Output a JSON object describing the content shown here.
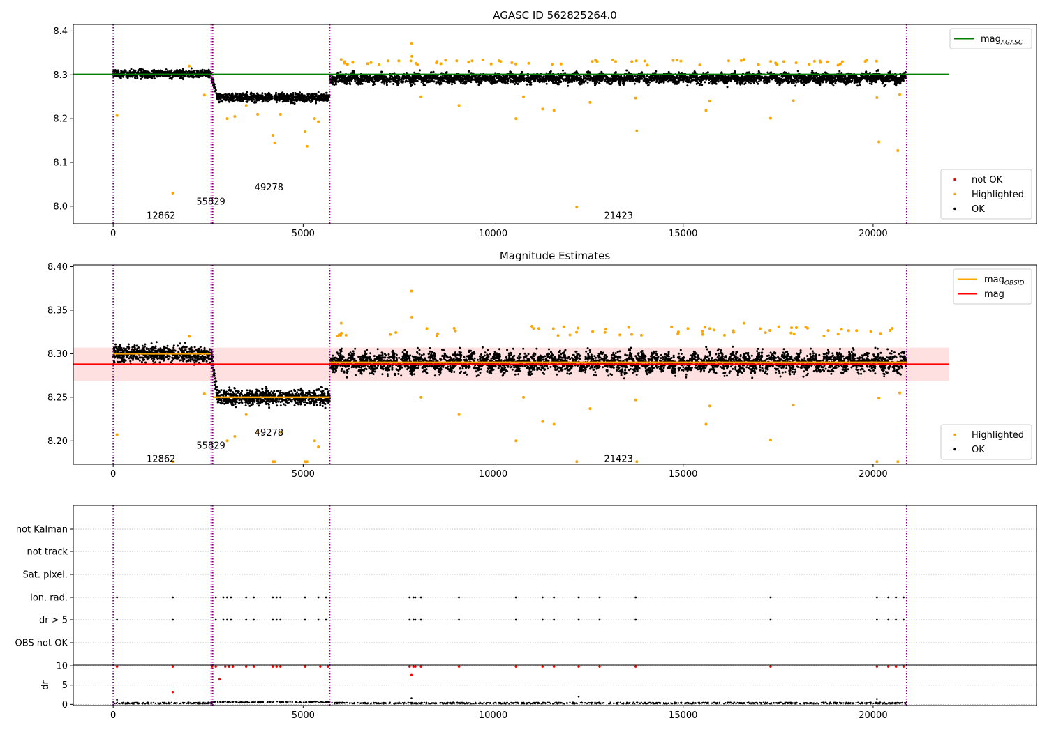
{
  "chart_data": [
    {
      "type": "scatter",
      "title": "AGASC ID 562825264.0",
      "xlim": [
        -1050,
        24300
      ],
      "ylim": [
        7.96,
        8.415
      ],
      "xticks": [
        0,
        5000,
        10000,
        15000,
        20000
      ],
      "xtick_labels": [
        "0",
        "5000",
        "10000",
        "15000",
        "20000"
      ],
      "yticks": [
        8.0,
        8.1,
        8.2,
        8.3,
        8.4
      ],
      "ytick_labels": [
        "8.0",
        "8.1",
        "8.2",
        "8.3",
        "8.4"
      ],
      "vlines": [
        0,
        2580,
        2620,
        5700,
        20880
      ],
      "obsid_segments": [
        {
          "label": "12862",
          "x": [
            0,
            2580
          ],
          "mag": 8.302,
          "spread": 0.01,
          "label_pos": [
            1260,
            7.98
          ]
        },
        {
          "label": "55829",
          "x": [
            2620,
            5700
          ],
          "mag": 8.248,
          "spread": 0.01,
          "label_pos": [
            2570,
            8.012
          ]
        },
        {
          "label": "49278",
          "x": [
            2620,
            5700
          ],
          "mag": 8.248,
          "spread": 0.01,
          "label_pos": [
            4100,
            8.044
          ]
        },
        {
          "label": "21423",
          "x": [
            5700,
            20880
          ],
          "mag": 8.292,
          "spread": 0.012,
          "label_pos": [
            13300,
            7.98
          ]
        }
      ],
      "highlighted_points": [
        [
          100,
          8.207
        ],
        [
          1570,
          8.03
        ],
        [
          2000,
          8.32
        ],
        [
          2400,
          8.254
        ],
        [
          3000,
          8.2
        ],
        [
          3200,
          8.205
        ],
        [
          3500,
          8.23
        ],
        [
          3800,
          8.21
        ],
        [
          4200,
          8.162
        ],
        [
          4250,
          8.145
        ],
        [
          4400,
          8.21
        ],
        [
          5050,
          8.17
        ],
        [
          5100,
          8.137
        ],
        [
          5300,
          8.2
        ],
        [
          5400,
          8.193
        ],
        [
          6000,
          8.335
        ],
        [
          7850,
          8.372
        ],
        [
          7860,
          8.342
        ],
        [
          8100,
          8.25
        ],
        [
          9100,
          8.23
        ],
        [
          10600,
          8.2
        ],
        [
          10800,
          8.25
        ],
        [
          11300,
          8.222
        ],
        [
          11600,
          8.219
        ],
        [
          12200,
          7.998
        ],
        [
          12550,
          8.237
        ],
        [
          13750,
          8.247
        ],
        [
          13780,
          8.172
        ],
        [
          15600,
          8.219
        ],
        [
          15700,
          8.24
        ],
        [
          16600,
          8.335
        ],
        [
          17300,
          8.201
        ],
        [
          17900,
          8.241
        ],
        [
          20100,
          8.248
        ],
        [
          20150,
          8.147
        ],
        [
          20650,
          8.127
        ],
        [
          20700,
          8.255
        ]
      ],
      "agasc_mag": 8.301,
      "agasc_xrange": [
        -1050,
        22000
      ],
      "legends": [
        {
          "position": "top-right",
          "entries": [
            {
              "label": "mag",
              "sub": "AGASC",
              "style": "line",
              "color": "#008000"
            }
          ]
        },
        {
          "position": "bottom-right",
          "entries": [
            {
              "label": "not OK",
              "style": "point",
              "color": "#ff0000"
            },
            {
              "label": "Highlighted",
              "style": "point",
              "color": "#ffa500"
            },
            {
              "label": "OK",
              "style": "point",
              "color": "#000000"
            }
          ]
        }
      ]
    },
    {
      "type": "scatter",
      "title": "Magnitude Estimates",
      "xlim": [
        -1050,
        24300
      ],
      "ylim": [
        8.173,
        8.402
      ],
      "xticks": [
        0,
        5000,
        10000,
        15000,
        20000
      ],
      "xtick_labels": [
        "0",
        "5000",
        "10000",
        "15000",
        "20000"
      ],
      "yticks": [
        8.2,
        8.25,
        8.3,
        8.35,
        8.4
      ],
      "ytick_labels": [
        "8.20",
        "8.25",
        "8.30",
        "8.35",
        "8.40"
      ],
      "vlines": [
        0,
        2580,
        2620,
        5700,
        20880
      ],
      "obsid_segments": [
        {
          "label": "12862",
          "x": [
            0,
            2580
          ],
          "mag": 8.3,
          "spread": 0.01,
          "label_pos": [
            1260,
            8.18
          ]
        },
        {
          "label": "55829",
          "x": [
            2620,
            5700
          ],
          "mag": 8.25,
          "spread": 0.01,
          "label_pos": [
            2570,
            8.195
          ]
        },
        {
          "label": "49278",
          "x": [
            2620,
            5700
          ],
          "mag": 8.25,
          "spread": 0.01,
          "label_pos": [
            4100,
            8.21
          ]
        },
        {
          "label": "21423",
          "x": [
            5700,
            20880
          ],
          "mag": 8.29,
          "spread": 0.012,
          "label_pos": [
            13300,
            8.18
          ]
        }
      ],
      "highlighted_points": [
        [
          100,
          8.207
        ],
        [
          1570,
          8.176
        ],
        [
          2000,
          8.32
        ],
        [
          2400,
          8.254
        ],
        [
          3000,
          8.2
        ],
        [
          3200,
          8.205
        ],
        [
          3500,
          8.23
        ],
        [
          3800,
          8.21
        ],
        [
          4200,
          8.176
        ],
        [
          4250,
          8.176
        ],
        [
          4400,
          8.21
        ],
        [
          5050,
          8.176
        ],
        [
          5100,
          8.176
        ],
        [
          5300,
          8.2
        ],
        [
          5400,
          8.193
        ],
        [
          6000,
          8.335
        ],
        [
          7850,
          8.372
        ],
        [
          7860,
          8.342
        ],
        [
          8100,
          8.25
        ],
        [
          9100,
          8.23
        ],
        [
          10600,
          8.2
        ],
        [
          10800,
          8.25
        ],
        [
          11300,
          8.222
        ],
        [
          11600,
          8.219
        ],
        [
          12200,
          8.176
        ],
        [
          12550,
          8.237
        ],
        [
          13750,
          8.247
        ],
        [
          13780,
          8.176
        ],
        [
          15600,
          8.219
        ],
        [
          15700,
          8.24
        ],
        [
          16600,
          8.335
        ],
        [
          17300,
          8.201
        ],
        [
          17900,
          8.241
        ],
        [
          20100,
          8.176
        ],
        [
          20150,
          8.249
        ],
        [
          20650,
          8.176
        ],
        [
          20700,
          8.255
        ]
      ],
      "mag": 8.288,
      "mag_band": [
        8.269,
        8.307
      ],
      "mag_xrange": [
        -1050,
        22000
      ],
      "legends": [
        {
          "position": "top-right",
          "entries": [
            {
              "label": "mag",
              "sub": "OBSID",
              "style": "line",
              "color": "#ffa500"
            },
            {
              "label": "mag",
              "style": "line",
              "color": "#ff0000"
            }
          ]
        },
        {
          "position": "bottom-right",
          "entries": [
            {
              "label": "Highlighted",
              "style": "point",
              "color": "#ffa500"
            },
            {
              "label": "OK",
              "style": "point",
              "color": "#000000"
            }
          ]
        }
      ]
    },
    {
      "type": "scatter",
      "title": "",
      "xlim": [
        -1050,
        24300
      ],
      "ytick_labels": [
        "not Kalman",
        "not track",
        "Sat. pixel.",
        "Ion. rad.",
        "dr > 5",
        "OBS not OK"
      ],
      "flag_points": {
        "Ion. rad.": [
          100,
          1570,
          2700,
          2900,
          3000,
          3100,
          3500,
          3700,
          4200,
          4300,
          4400,
          5050,
          5400,
          5600,
          7800,
          7900,
          7950,
          8100,
          9100,
          10600,
          11300,
          11600,
          12250,
          12800,
          13750,
          17300,
          20100,
          20400,
          20600,
          20800
        ],
        "dr > 5": [
          100,
          1570,
          2700,
          2900,
          3000,
          3100,
          3500,
          3700,
          4200,
          4300,
          4400,
          5050,
          5400,
          5600,
          7800,
          7900,
          7950,
          8100,
          9100,
          10600,
          11300,
          11600,
          12250,
          12800,
          13750,
          17300,
          20100,
          20400,
          20600,
          20800
        ]
      }
    },
    {
      "type": "scatter",
      "xlim": [
        -1050,
        24300
      ],
      "ylim": [
        -0.3,
        10.2
      ],
      "ylabel": "dr",
      "xticks": [
        0,
        5000,
        10000,
        15000,
        20000
      ],
      "xtick_labels": [
        "0",
        "5000",
        "10000",
        "15000",
        "20000"
      ],
      "yticks": [
        0,
        5,
        10
      ],
      "ytick_labels": [
        "0",
        "5",
        "10"
      ],
      "notok_points": [
        [
          100,
          9.8
        ],
        [
          1570,
          9.8
        ],
        [
          1570,
          3.2
        ],
        [
          2600,
          9.8
        ],
        [
          2700,
          9.8
        ],
        [
          2800,
          6.5
        ],
        [
          2950,
          9.8
        ],
        [
          3050,
          9.8
        ],
        [
          3150,
          9.8
        ],
        [
          3500,
          9.8
        ],
        [
          3700,
          9.8
        ],
        [
          4200,
          9.8
        ],
        [
          4300,
          9.8
        ],
        [
          4400,
          9.8
        ],
        [
          5050,
          9.8
        ],
        [
          5450,
          9.8
        ],
        [
          5650,
          9.8
        ],
        [
          7800,
          9.8
        ],
        [
          7850,
          7.6
        ],
        [
          7900,
          9.8
        ],
        [
          7950,
          9.8
        ],
        [
          8100,
          9.8
        ],
        [
          9100,
          9.8
        ],
        [
          10600,
          9.8
        ],
        [
          11300,
          9.8
        ],
        [
          11600,
          9.8
        ],
        [
          12250,
          9.8
        ],
        [
          12800,
          9.8
        ],
        [
          13750,
          9.8
        ],
        [
          17300,
          9.8
        ],
        [
          20100,
          9.8
        ],
        [
          20400,
          9.8
        ],
        [
          20600,
          9.8
        ],
        [
          20800,
          9.8
        ]
      ],
      "ok_spikes": [
        [
          100,
          1.2
        ],
        [
          7850,
          1.6
        ],
        [
          12250,
          2.0
        ],
        [
          20100,
          1.4
        ]
      ]
    }
  ]
}
